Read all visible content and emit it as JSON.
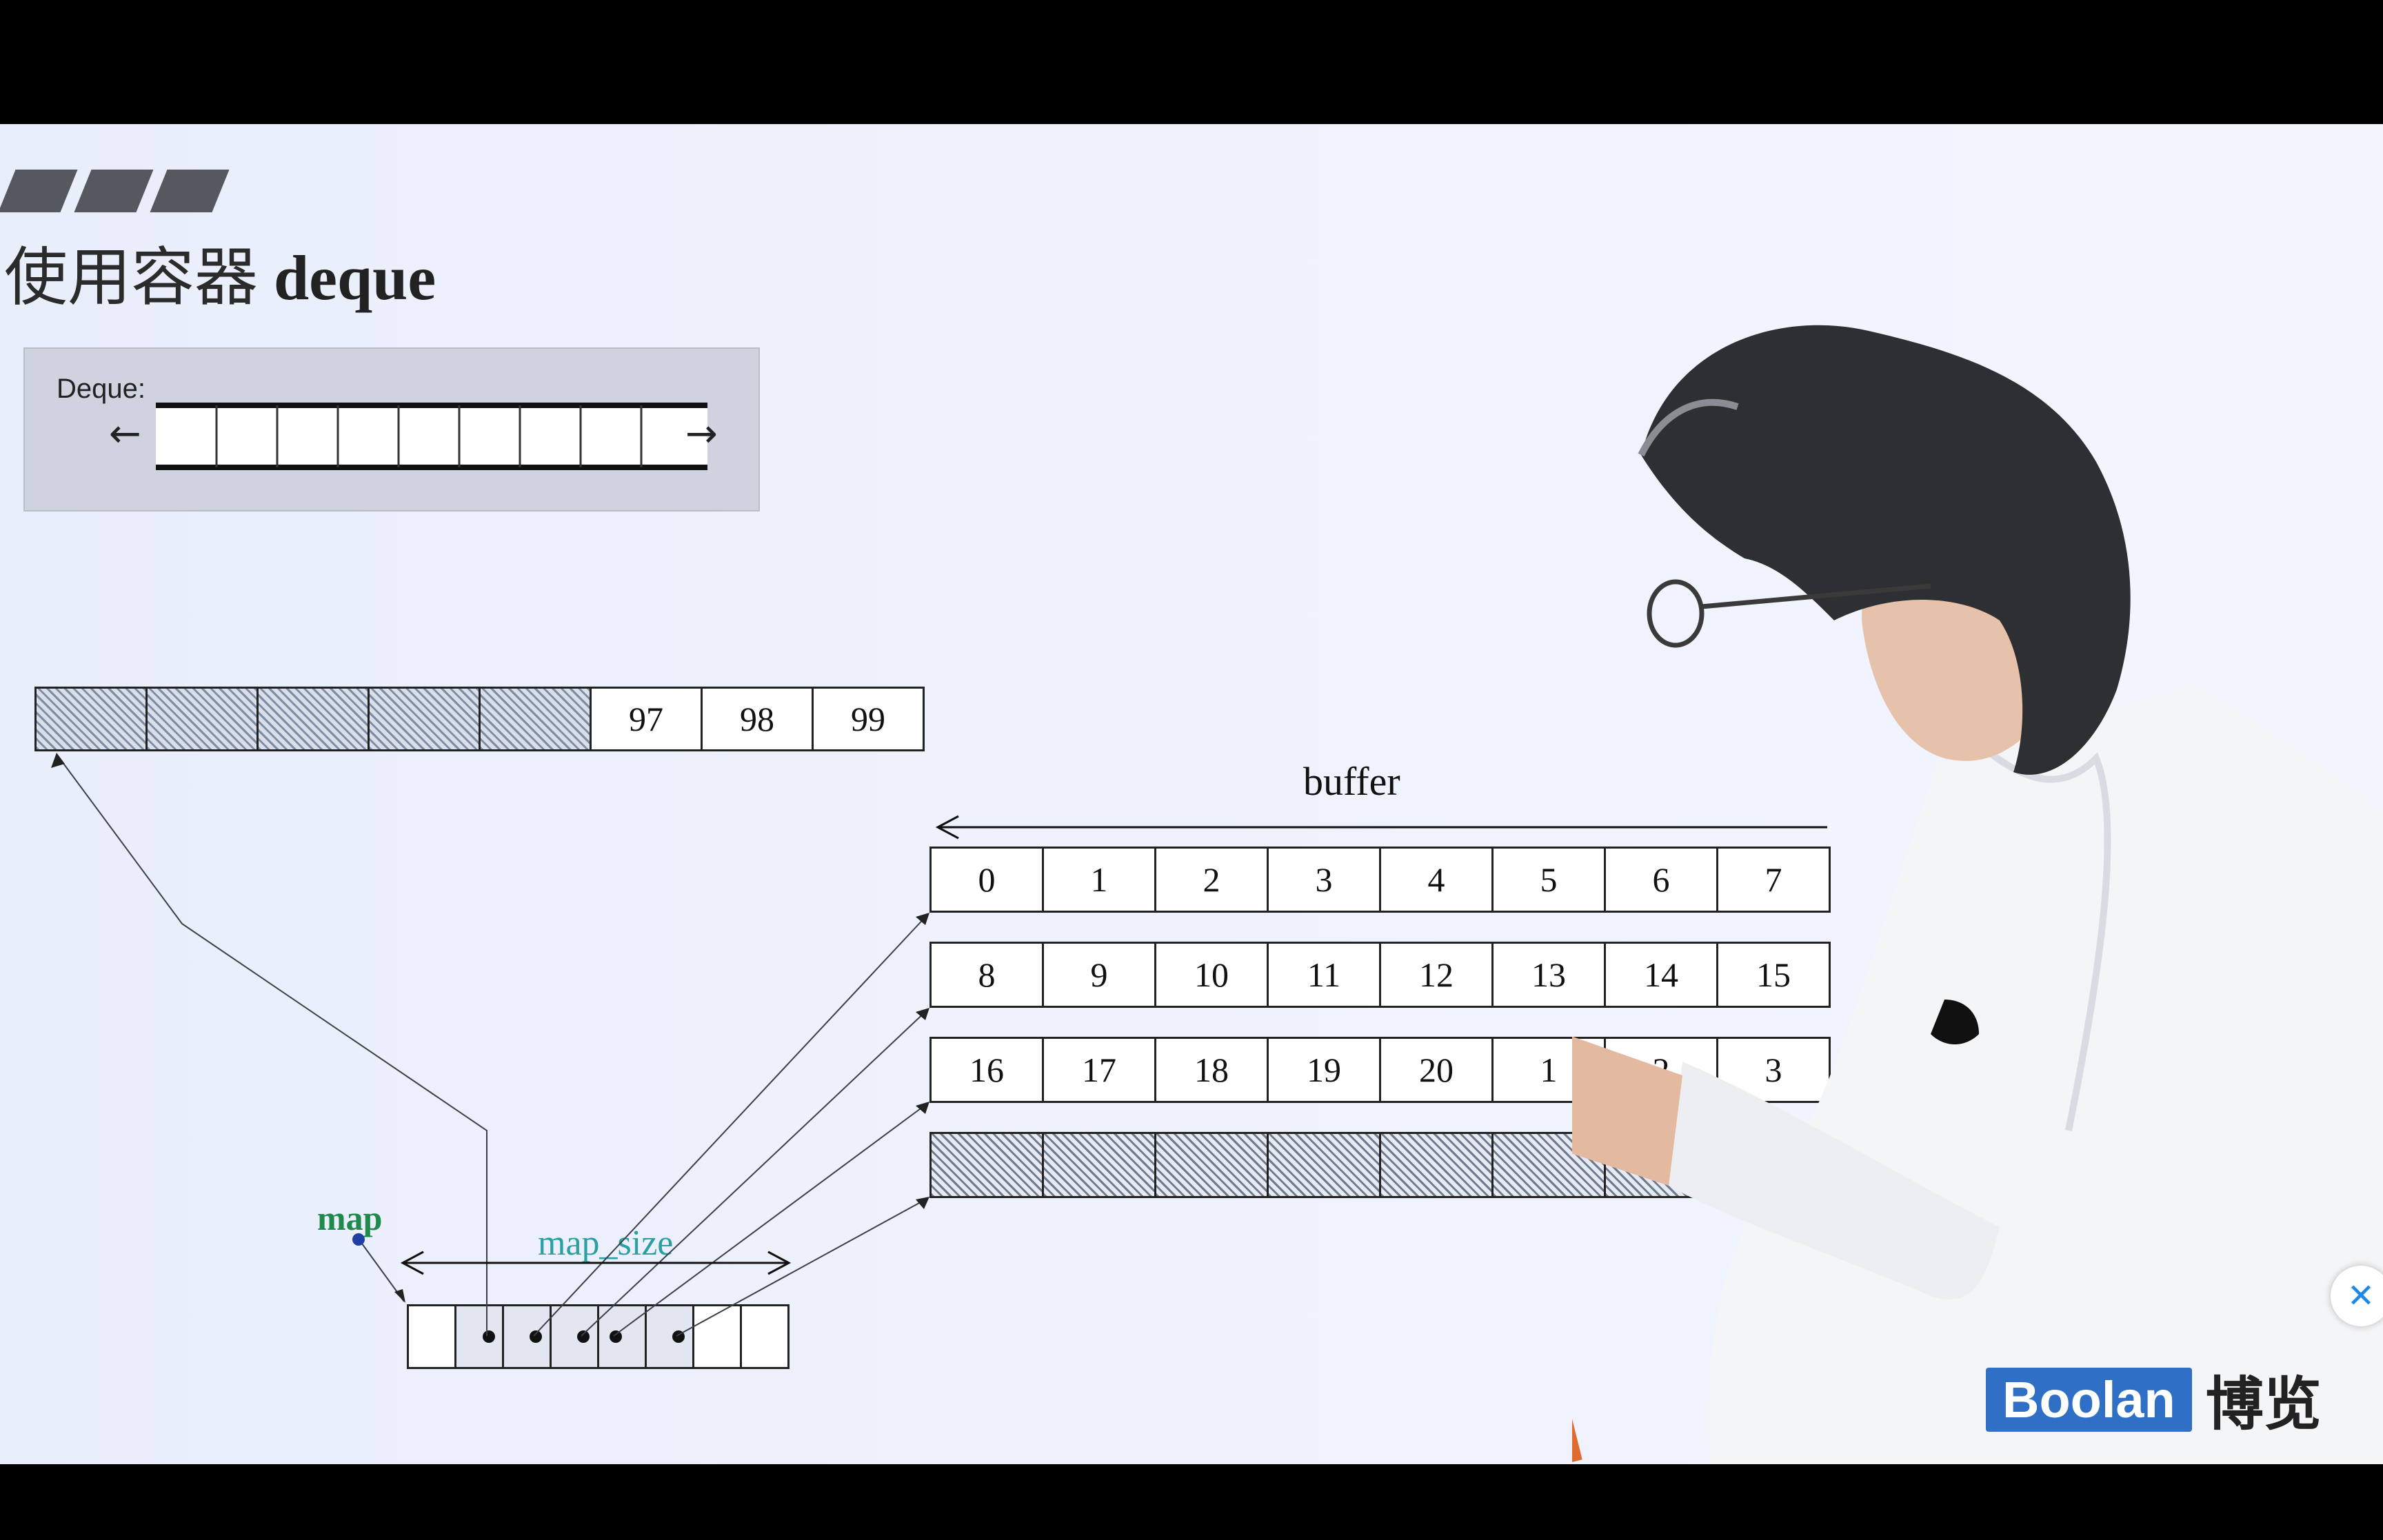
{
  "title": {
    "cn": "使用容器",
    "en": "deque"
  },
  "deque_inset": {
    "label": "Deque:",
    "arrow_left": "←",
    "arrow_right": "→"
  },
  "top_buffer": {
    "values": [
      "97",
      "98",
      "99"
    ]
  },
  "buffer_label": "buffer",
  "buffer_rows": [
    [
      "0",
      "1",
      "2",
      "3",
      "4",
      "5",
      "6",
      "7"
    ],
    [
      "8",
      "9",
      "10",
      "11",
      "12",
      "13",
      "14",
      "15"
    ],
    [
      "16",
      "17",
      "18",
      "19",
      "20",
      "1",
      "2",
      "3"
    ]
  ],
  "map_label": "map",
  "map_size_label": "map_size",
  "logo": {
    "brand": "Boolan",
    "cn": "博览"
  },
  "close_icon": "✕",
  "colors": {
    "map": "#1f8a4c",
    "map_size": "#2aa0a0",
    "logo": "#2f6fc6"
  }
}
